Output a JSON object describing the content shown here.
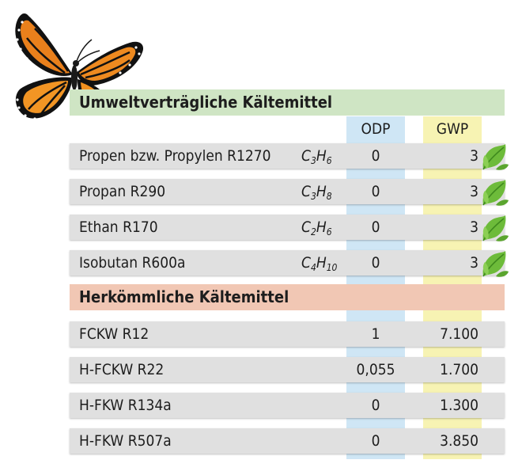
{
  "sections": {
    "eco_title": "Umweltverträgliche Kältemittel",
    "conventional_title": "Herkömmliche Kältemittel"
  },
  "columns": {
    "odp": "ODP",
    "gwp": "GWP"
  },
  "eco_rows": [
    {
      "name": "Propen bzw. Propylen R1270",
      "f1": "C",
      "s1": "3",
      "f2": "H",
      "s2": "6",
      "odp": "0",
      "gwp": "3",
      "icon": "leaf-icon"
    },
    {
      "name": "Propan R290",
      "f1": "C",
      "s1": "3",
      "f2": "H",
      "s2": "8",
      "odp": "0",
      "gwp": "3",
      "icon": "leaf-icon"
    },
    {
      "name": "Ethan R170",
      "f1": "C",
      "s1": "2",
      "f2": "H",
      "s2": "6",
      "odp": "0",
      "gwp": "3",
      "icon": "leaf-icon"
    },
    {
      "name": "Isobutan R600a",
      "f1": "C",
      "s1": "4",
      "f2": "H",
      "s2": "10",
      "odp": "0",
      "gwp": "3",
      "icon": "leaf-icon"
    }
  ],
  "conventional_rows": [
    {
      "name": "FCKW R12",
      "odp": "1",
      "gwp": "7.100"
    },
    {
      "name": "H-FCKW R22",
      "odp": "0,055",
      "gwp": "1.700"
    },
    {
      "name": "H-FKW R134a",
      "odp": "0",
      "gwp": "1.300"
    },
    {
      "name": "H-FKW R507a",
      "odp": "0",
      "gwp": "3.850"
    }
  ],
  "colors": {
    "eco_header": "#cfe5c4",
    "conventional_header": "#f1c7b4",
    "odp_column": "#cfe6f5",
    "gwp_column": "#f7f3b3",
    "row": "#e0e0e0"
  },
  "decoration": "butterfly-icon"
}
